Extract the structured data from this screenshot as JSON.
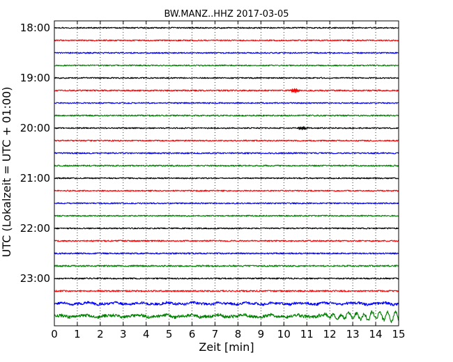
{
  "chart_data": {
    "type": "line",
    "title": "BW.MANZ..HHZ 2017-03-05",
    "xlabel": "Zeit  [min]",
    "ylabel": "UTC (Lokalzeit = UTC + 01:00)",
    "xlim": [
      0,
      15
    ],
    "x_tick_labels": [
      "0",
      "1",
      "2",
      "3",
      "4",
      "5",
      "6",
      "7",
      "8",
      "9",
      "10",
      "11",
      "12",
      "13",
      "14",
      "15"
    ],
    "y_tick_labels": [
      "18:00",
      "19:00",
      "20:00",
      "21:00",
      "22:00",
      "23:00"
    ],
    "grid": "vertical dotted lines at each minute",
    "trace_colors": [
      "#000000",
      "#ff0000",
      "#0000ff",
      "#008000"
    ],
    "traces": [
      {
        "start": "18:00",
        "color": "#000000",
        "amplitude": 0.9
      },
      {
        "start": "18:15",
        "color": "#ff0000",
        "amplitude": 0.9
      },
      {
        "start": "18:30",
        "color": "#0000ff",
        "amplitude": 0.9
      },
      {
        "start": "18:45",
        "color": "#008000",
        "amplitude": 0.9
      },
      {
        "start": "19:00",
        "color": "#000000",
        "amplitude": 0.9
      },
      {
        "start": "19:15",
        "color": "#ff0000",
        "amplitude": 1.0,
        "burst": {
          "x": 10.5,
          "amplitude": 3
        }
      },
      {
        "start": "19:30",
        "color": "#0000ff",
        "amplitude": 0.9
      },
      {
        "start": "19:45",
        "color": "#008000",
        "amplitude": 1.0
      },
      {
        "start": "20:00",
        "color": "#000000",
        "amplitude": 0.9,
        "burst": {
          "x": 10.8,
          "amplitude": 2.5
        }
      },
      {
        "start": "20:15",
        "color": "#ff0000",
        "amplitude": 0.9
      },
      {
        "start": "20:30",
        "color": "#0000ff",
        "amplitude": 1.0
      },
      {
        "start": "20:45",
        "color": "#008000",
        "amplitude": 1.0
      },
      {
        "start": "21:00",
        "color": "#000000",
        "amplitude": 0.9
      },
      {
        "start": "21:15",
        "color": "#ff0000",
        "amplitude": 0.9
      },
      {
        "start": "21:30",
        "color": "#0000ff",
        "amplitude": 0.9
      },
      {
        "start": "21:45",
        "color": "#008000",
        "amplitude": 0.9
      },
      {
        "start": "22:00",
        "color": "#000000",
        "amplitude": 0.9
      },
      {
        "start": "22:15",
        "color": "#ff0000",
        "amplitude": 1.0
      },
      {
        "start": "22:30",
        "color": "#0000ff",
        "amplitude": 1.0
      },
      {
        "start": "22:45",
        "color": "#008000",
        "amplitude": 1.1
      },
      {
        "start": "23:00",
        "color": "#000000",
        "amplitude": 1.0
      },
      {
        "start": "23:15",
        "color": "#ff0000",
        "amplitude": 1.1
      },
      {
        "start": "23:30",
        "color": "#0000ff",
        "amplitude": 1.8,
        "low_frequency": true
      },
      {
        "start": "23:45",
        "color": "#008000",
        "amplitude": 2.2,
        "low_frequency": true,
        "growing_oscillation_from": 11.5
      }
    ]
  }
}
